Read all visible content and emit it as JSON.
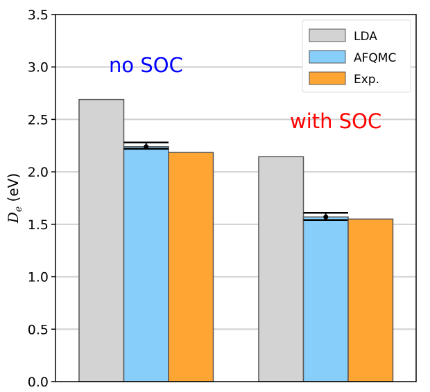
{
  "chart_data": {
    "type": "bar",
    "title": "",
    "xlabel": "",
    "ylabel_main": "D",
    "ylabel_sub": "e",
    "ylabel_unit": " (eV)",
    "ylim": [
      0,
      3.5
    ],
    "yticks": [
      "0.0",
      "0.5",
      "1.0",
      "1.5",
      "2.0",
      "2.5",
      "3.0",
      "3.5"
    ],
    "grid": "horizontal",
    "legend_position": "top-right",
    "groups": [
      {
        "annotation": "no SOC",
        "annotation_color": "#0000ff"
      },
      {
        "annotation": "with SOC",
        "annotation_color": "#ff0000"
      }
    ],
    "series": [
      {
        "name": "LDA",
        "color": "#d3d3d3",
        "values": [
          2.69,
          2.145
        ]
      },
      {
        "name": "AFQMC",
        "color": "#87cefa",
        "values": [
          2.24,
          1.57
        ],
        "error_low": [
          2.22,
          1.54
        ],
        "error_high": [
          2.28,
          1.61
        ]
      },
      {
        "name": "Exp.",
        "color": "#ffa533",
        "values": [
          2.185,
          1.55
        ]
      }
    ]
  }
}
